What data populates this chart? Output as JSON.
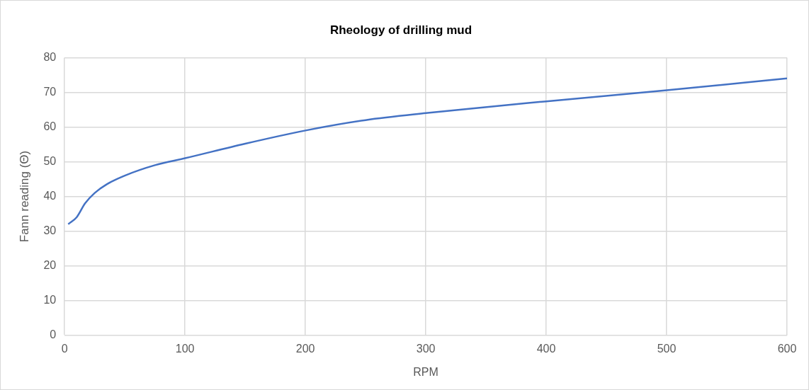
{
  "chart_data": {
    "type": "line",
    "title": "Rheology of drilling mud",
    "xlabel": "RPM",
    "ylabel": "Fann reading (Θ)",
    "x": [
      3,
      10,
      17,
      25,
      35,
      50,
      75,
      100,
      150,
      200,
      250,
      300,
      400,
      500,
      600
    ],
    "series": [
      {
        "color": "#4472c4",
        "values": [
          32,
          34,
          38,
          41,
          43.5,
          46,
          49,
          51,
          55.2,
          59,
          62,
          64,
          67.4,
          70.6,
          74
        ]
      }
    ],
    "xlim": [
      0,
      600
    ],
    "xticks": [
      0,
      100,
      200,
      300,
      400,
      500,
      600
    ],
    "ylim": [
      0,
      80
    ],
    "yticks": [
      0,
      10,
      20,
      30,
      40,
      50,
      60,
      70,
      80
    ],
    "grid": true,
    "legend": false,
    "marker": "none",
    "line_style": "solid"
  }
}
